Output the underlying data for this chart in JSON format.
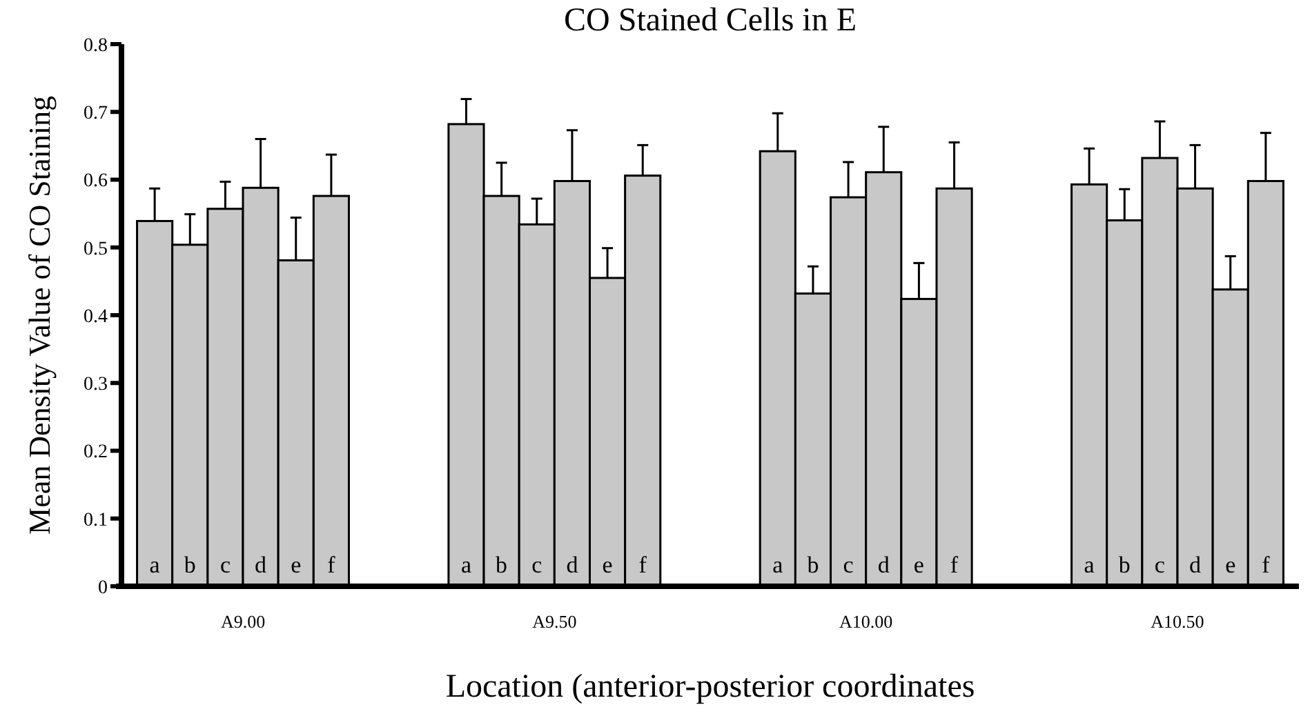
{
  "chart_data": {
    "type": "bar",
    "title": "CO Stained Cells in E",
    "xlabel": "Location (anterior-posterior coordinates",
    "ylabel": "Mean Density Value of CO Staining",
    "categories": [
      "A9.00",
      "A9.50",
      "A10.00",
      "A10.50"
    ],
    "series": [
      {
        "name": "a",
        "color": "#c8c8c8",
        "values": [
          0.539,
          0.682,
          0.642,
          0.593
        ],
        "errors": [
          [
            0.539,
            0.587
          ],
          [
            0.682,
            0.719
          ],
          [
            0.642,
            0.698
          ],
          [
            0.593,
            0.646
          ]
        ]
      },
      {
        "name": "b",
        "color": "#c8c8c8",
        "values": [
          0.504,
          0.576,
          0.432,
          0.54
        ],
        "errors": [
          [
            0.504,
            0.549
          ],
          [
            0.576,
            0.625
          ],
          [
            0.432,
            0.472
          ],
          [
            0.54,
            0.586
          ]
        ]
      },
      {
        "name": "c",
        "color": "#c8c8c8",
        "values": [
          0.557,
          0.534,
          0.574,
          0.632
        ],
        "errors": [
          [
            0.557,
            0.597
          ],
          [
            0.534,
            0.572
          ],
          [
            0.574,
            0.626
          ],
          [
            0.632,
            0.686
          ]
        ]
      },
      {
        "name": "d",
        "color": "#c8c8c8",
        "values": [
          0.588,
          0.598,
          0.611,
          0.587
        ],
        "errors": [
          [
            0.588,
            0.66
          ],
          [
            0.598,
            0.673
          ],
          [
            0.611,
            0.678
          ],
          [
            0.587,
            0.651
          ]
        ]
      },
      {
        "name": "e",
        "color": "#c8c8c8",
        "values": [
          0.481,
          0.455,
          0.424,
          0.438
        ],
        "errors": [
          [
            0.481,
            0.544
          ],
          [
            0.455,
            0.499
          ],
          [
            0.424,
            0.477
          ],
          [
            0.438,
            0.487
          ]
        ]
      },
      {
        "name": "f",
        "color": "#c8c8c8",
        "values": [
          0.576,
          0.606,
          0.587,
          0.598
        ],
        "errors": [
          [
            0.576,
            0.637
          ],
          [
            0.606,
            0.651
          ],
          [
            0.587,
            0.655
          ],
          [
            0.598,
            0.669
          ]
        ]
      }
    ],
    "ylim": [
      0,
      0.8
    ],
    "yticks": [
      0,
      0.1,
      0.2,
      0.3,
      0.4,
      0.5,
      0.6,
      0.7,
      0.8
    ],
    "grid": false,
    "legend": false
  }
}
